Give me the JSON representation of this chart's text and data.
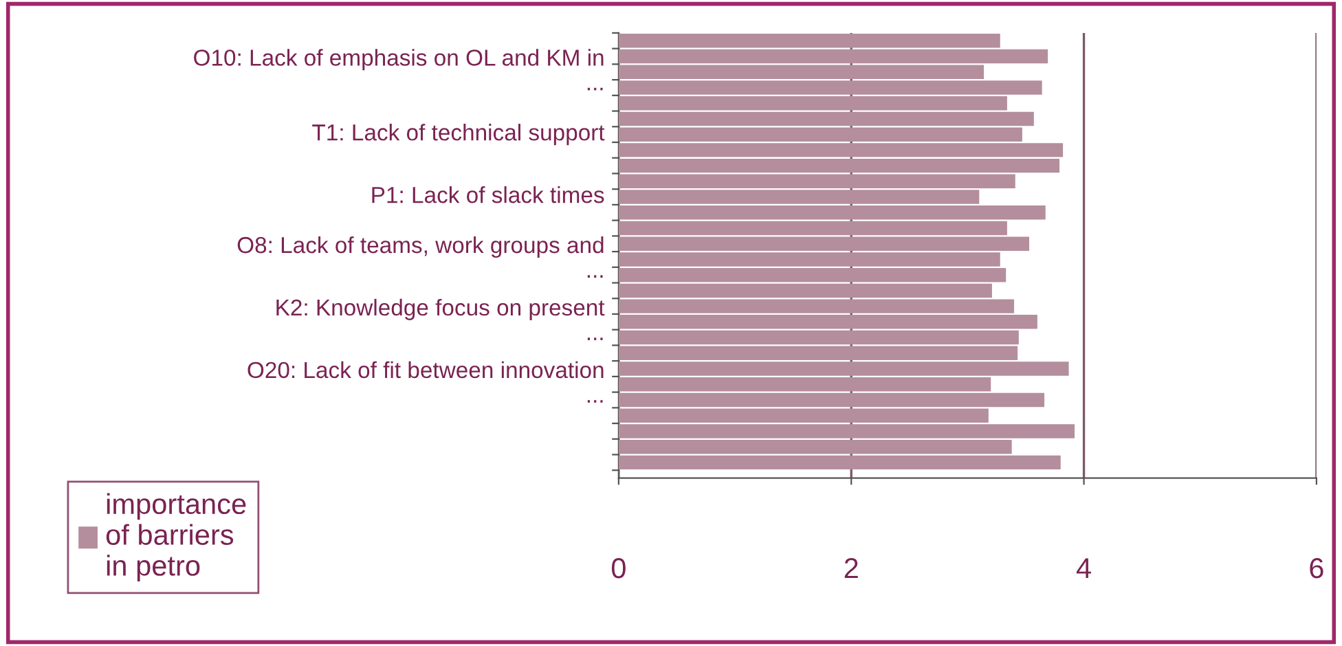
{
  "chart_data": {
    "type": "bar",
    "orientation": "horizontal",
    "categories": [
      null,
      null,
      "O10: Lack of emphasis on OL and KM in\n...",
      null,
      null,
      null,
      "T1: Lack of technical support",
      null,
      null,
      null,
      "P1: Lack of slack times",
      null,
      null,
      null,
      "O8: Lack of teams, work groups and\n...",
      null,
      null,
      null,
      "K2: Knowledge focus on present\n...",
      null,
      null,
      null,
      "O20: Lack of fit between innovation\n...",
      null,
      null,
      null,
      null,
      null
    ],
    "series": [
      {
        "name": "importance of barriers in petro",
        "color": "#b48e9c",
        "values": [
          3.28,
          3.69,
          3.14,
          3.64,
          3.34,
          3.57,
          3.47,
          3.82,
          3.79,
          3.41,
          3.1,
          3.67,
          3.34,
          3.53,
          3.28,
          3.33,
          3.21,
          3.4,
          3.6,
          3.44,
          3.43,
          3.87,
          3.2,
          3.66,
          3.18,
          3.92,
          3.38,
          3.8
        ]
      }
    ],
    "xlim": [
      0,
      6
    ],
    "xticks": [
      0,
      2,
      4,
      6
    ],
    "grid": "x",
    "legend": "bottom left"
  }
}
